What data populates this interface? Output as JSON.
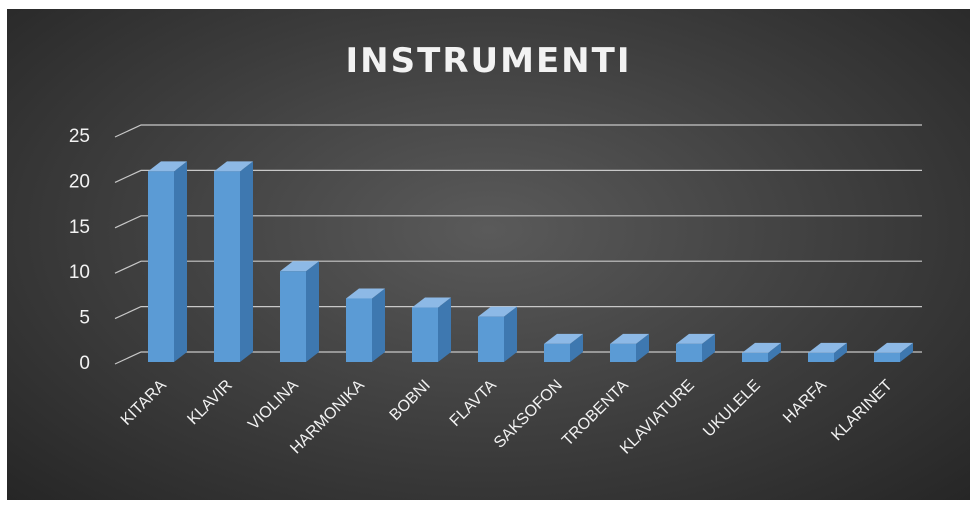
{
  "chart_data": {
    "type": "bar",
    "title": "INSTRUMENTI",
    "xlabel": "",
    "ylabel": "",
    "categories": [
      "KITARA",
      "KLAVIR",
      "VIOLINA",
      "HARMONIKA",
      "BOBNI",
      "FLAVTA",
      "SAKSOFON",
      "TROBENTA",
      "KLAVIATURE",
      "UKULELE",
      "HARFA",
      "KLARINET"
    ],
    "values": [
      21,
      21,
      10,
      7,
      6,
      5,
      2,
      2,
      2,
      1,
      1,
      1
    ],
    "ylim": [
      0,
      25
    ],
    "yticks": [
      "0",
      "5",
      "10",
      "15",
      "20",
      "25"
    ],
    "grid": true,
    "legend": "none",
    "style": "3d-bar",
    "colors": {
      "bar_front": "#5b9bd5",
      "bar_side": "#3e78b0",
      "bar_top": "#8db9e6",
      "gridline": "#c8c8c8",
      "text": "#f2f2f2",
      "background": "#3f3f3f"
    }
  }
}
